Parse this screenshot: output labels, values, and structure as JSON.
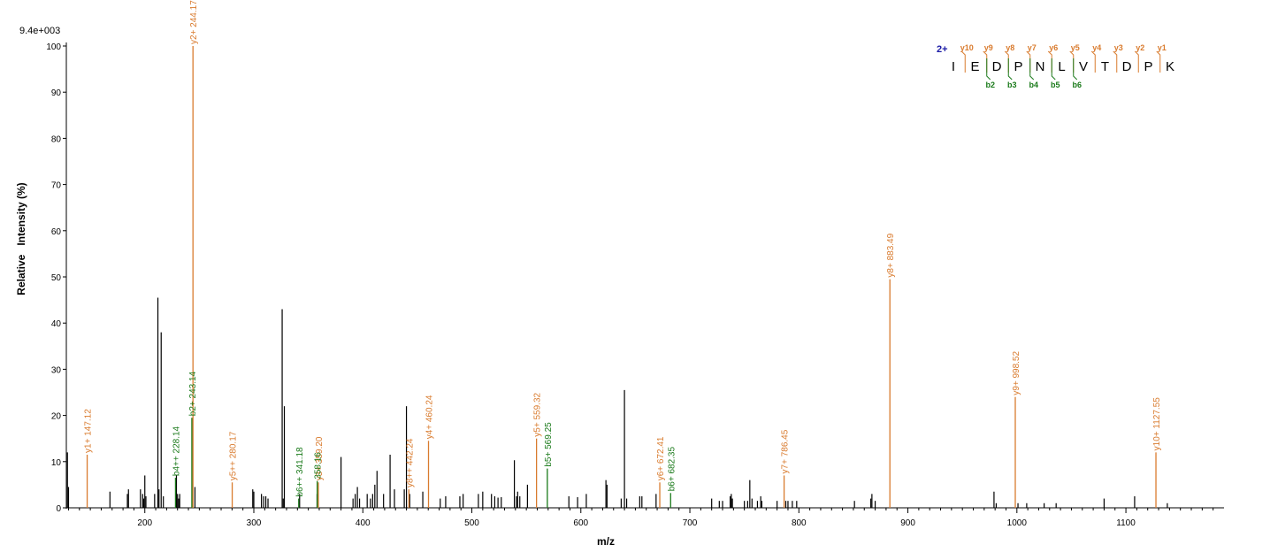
{
  "chart_data": {
    "type": "bar",
    "scale_label": "9.4e+003",
    "xlabel": "m/z",
    "ylabel": "Relative   Intensity (%)",
    "xlim": [
      128,
      1190
    ],
    "ylim": [
      0,
      100
    ],
    "x_ticks": [
      200,
      300,
      400,
      500,
      600,
      700,
      800,
      900,
      1000,
      1100
    ],
    "y_ticks": [
      0,
      10,
      20,
      30,
      40,
      50,
      60,
      70,
      80,
      90,
      100
    ],
    "colors": {
      "unannotated": "#000000",
      "y_ion": "#d97b2e",
      "b_ion": "#1a7a1a",
      "charge": "#1a1aa6",
      "axis": "#000000"
    },
    "annotated_peaks": [
      {
        "label": "y1+ 147.12",
        "mz": 147.12,
        "intensity": 11.5,
        "type": "y"
      },
      {
        "label": "b4++ 228.14",
        "mz": 228.14,
        "intensity": 6.5,
        "type": "b"
      },
      {
        "label": "b2+ 243.14",
        "mz": 243.14,
        "intensity": 19.5,
        "type": "b"
      },
      {
        "label": "y2+ 244.17",
        "mz": 244.17,
        "intensity": 100,
        "type": "y"
      },
      {
        "label": "y5++ 280.17",
        "mz": 280.17,
        "intensity": 5.5,
        "type": "y"
      },
      {
        "label": "b6++ 341.18",
        "mz": 341.18,
        "intensity": 2,
        "type": "b"
      },
      {
        "label": "y3+ 359.20",
        "mz": 359.2,
        "intensity": 5.5,
        "type": "y"
      },
      {
        "label": "b3+ 358.16",
        "mz": 358.16,
        "intensity": 5.8,
        "type": "b",
        "display": "358.16"
      },
      {
        "label": "y8++ 442.24",
        "mz": 442.24,
        "intensity": 4,
        "type": "y"
      },
      {
        "label": "y4+ 460.24",
        "mz": 460.24,
        "intensity": 14.5,
        "type": "y"
      },
      {
        "label": "y5+ 559.32",
        "mz": 559.32,
        "intensity": 15,
        "type": "y"
      },
      {
        "label": "b5+ 569.25",
        "mz": 569.25,
        "intensity": 8.5,
        "type": "b"
      },
      {
        "label": "y6+ 672.41",
        "mz": 672.41,
        "intensity": 5.5,
        "type": "y"
      },
      {
        "label": "b6+ 682.35",
        "mz": 682.35,
        "intensity": 3.2,
        "type": "b"
      },
      {
        "label": "y7+ 786.45",
        "mz": 786.45,
        "intensity": 7,
        "type": "y"
      },
      {
        "label": "y8+ 883.49",
        "mz": 883.49,
        "intensity": 49.5,
        "type": "y"
      },
      {
        "label": "y9+ 998.52",
        "mz": 998.52,
        "intensity": 24,
        "type": "y"
      },
      {
        "label": "y10+ 1127.55",
        "mz": 1127.55,
        "intensity": 12,
        "type": "y"
      }
    ],
    "unannotated_peaks": [
      [
        129,
        12
      ],
      [
        130,
        4.5
      ],
      [
        168,
        3.5
      ],
      [
        184,
        3
      ],
      [
        185,
        4
      ],
      [
        196,
        4
      ],
      [
        198,
        3
      ],
      [
        199,
        2
      ],
      [
        200,
        7
      ],
      [
        201,
        2.5
      ],
      [
        209,
        3
      ],
      [
        212,
        45.5
      ],
      [
        213,
        4
      ],
      [
        215,
        38
      ],
      [
        217,
        2.5
      ],
      [
        229,
        7
      ],
      [
        230,
        3
      ],
      [
        231,
        2
      ],
      [
        232,
        3
      ],
      [
        246,
        4.5
      ],
      [
        299,
        4
      ],
      [
        300,
        3.5
      ],
      [
        307,
        3
      ],
      [
        309,
        2.5
      ],
      [
        311,
        2.5
      ],
      [
        313,
        2
      ],
      [
        326,
        43
      ],
      [
        327,
        2
      ],
      [
        328,
        22
      ],
      [
        342,
        3
      ],
      [
        358,
        3
      ],
      [
        380,
        11
      ],
      [
        391,
        2
      ],
      [
        393,
        3
      ],
      [
        395,
        4.5
      ],
      [
        397,
        2
      ],
      [
        404,
        3
      ],
      [
        407,
        2
      ],
      [
        409,
        3
      ],
      [
        411,
        5
      ],
      [
        413,
        8
      ],
      [
        419,
        3
      ],
      [
        425,
        11.5
      ],
      [
        429,
        4
      ],
      [
        438,
        4
      ],
      [
        440,
        22
      ],
      [
        443,
        3
      ],
      [
        455,
        3.5
      ],
      [
        471,
        2
      ],
      [
        476,
        2.5
      ],
      [
        489,
        2.5
      ],
      [
        492,
        3
      ],
      [
        506,
        3
      ],
      [
        510,
        3.5
      ],
      [
        518,
        3
      ],
      [
        521,
        2.5
      ],
      [
        524,
        2.2
      ],
      [
        527,
        2.3
      ],
      [
        539,
        10.3
      ],
      [
        541,
        2.5
      ],
      [
        542,
        3.5
      ],
      [
        544,
        2.5
      ],
      [
        551,
        5
      ],
      [
        589,
        2.5
      ],
      [
        597,
        2.3
      ],
      [
        605,
        3
      ],
      [
        623,
        6
      ],
      [
        624,
        5
      ],
      [
        637,
        2
      ],
      [
        640,
        25.5
      ],
      [
        642,
        2
      ],
      [
        654,
        2.5
      ],
      [
        656,
        2.5
      ],
      [
        669,
        3
      ],
      [
        720,
        2
      ],
      [
        727,
        1.5
      ],
      [
        730,
        1.5
      ],
      [
        737,
        2.5
      ],
      [
        738,
        3
      ],
      [
        739,
        2
      ],
      [
        750,
        1.5
      ],
      [
        753,
        1.5
      ],
      [
        755,
        6
      ],
      [
        757,
        2
      ],
      [
        762,
        1.5
      ],
      [
        765,
        2.5
      ],
      [
        766,
        1.5
      ],
      [
        780,
        1.5
      ],
      [
        788,
        1.5
      ],
      [
        790,
        1.5
      ],
      [
        794,
        1.5
      ],
      [
        798,
        1.5
      ],
      [
        851,
        1.5
      ],
      [
        866,
        2
      ],
      [
        867,
        3
      ],
      [
        870,
        1.5
      ],
      [
        979,
        3.5
      ],
      [
        981,
        1
      ],
      [
        1001,
        1
      ],
      [
        1009,
        1
      ],
      [
        1025,
        1
      ],
      [
        1036,
        1
      ],
      [
        1080,
        2
      ],
      [
        1108,
        2.5
      ],
      [
        1138,
        1
      ]
    ]
  },
  "peptide": {
    "charge": "2+",
    "residues": [
      "I",
      "E",
      "D",
      "P",
      "N",
      "L",
      "V",
      "T",
      "D",
      "P",
      "K"
    ],
    "y_labels": [
      "y10",
      "y9",
      "y8",
      "y7",
      "y6",
      "y5",
      "y4",
      "y3",
      "y2",
      "y1"
    ],
    "b_labels": [
      "b2",
      "b3",
      "b4",
      "b5",
      "b6"
    ]
  }
}
